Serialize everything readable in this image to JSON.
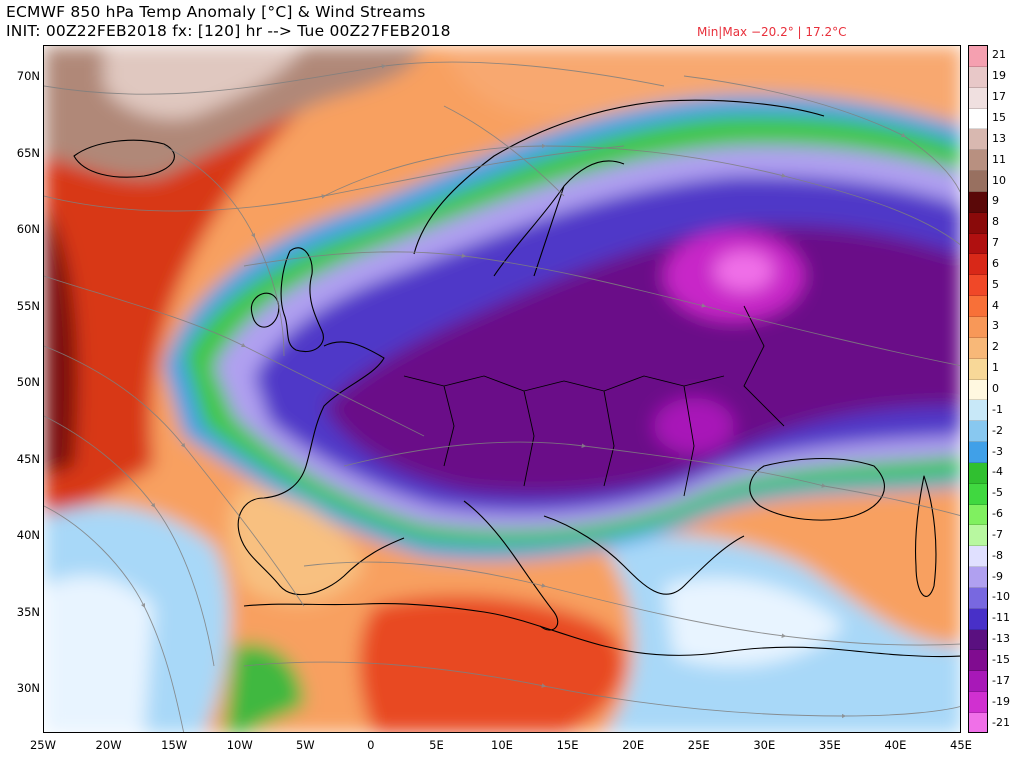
{
  "header": {
    "title_line1": "ECMWF 850 hPa Temp Anomaly [°C] & Wind Streams",
    "title_line2": "INIT: 00Z22FEB2018 fx: [120] hr --> Tue 00Z27FEB2018",
    "minmax": "Min|Max −20.2° | 17.2°C"
  },
  "map": {
    "lat_labels": [
      "70N",
      "65N",
      "60N",
      "55N",
      "50N",
      "45N",
      "40N",
      "35N",
      "30N"
    ],
    "lon_labels": [
      "25W",
      "20W",
      "15W",
      "10W",
      "5W",
      "0",
      "5E",
      "10E",
      "15E",
      "20E",
      "25E",
      "30E",
      "35E",
      "40E",
      "45E"
    ]
  },
  "colorbar": {
    "labels": [
      "21",
      "19",
      "17",
      "15",
      "13",
      "11",
      "10",
      "9",
      "8",
      "7",
      "6",
      "5",
      "4",
      "3",
      "2",
      "1",
      "0",
      "-1",
      "-2",
      "-3",
      "-4",
      "-5",
      "-6",
      "-7",
      "-8",
      "-9",
      "-10",
      "-11",
      "-13",
      "-15",
      "-17",
      "-19",
      "-21"
    ],
    "colors": [
      "#f5a0b0",
      "#e8c8c8",
      "#f0e0e0",
      "#ffffff",
      "#d8b8b0",
      "#b89080",
      "#987060",
      "#5a0808",
      "#8a0a0a",
      "#b01010",
      "#d82818",
      "#f04828",
      "#f87038",
      "#f89858",
      "#f8b878",
      "#f8d898",
      "#fff8e0",
      "#c8e8f8",
      "#88c8f0",
      "#40a0e8",
      "#30c030",
      "#40d840",
      "#80f060",
      "#b8f8a0",
      "#e0e0ff",
      "#b0a0f0",
      "#7868e0",
      "#4830c8",
      "#5a1080",
      "#800c90",
      "#a818b8",
      "#d030d0",
      "#f070e8"
    ]
  }
}
